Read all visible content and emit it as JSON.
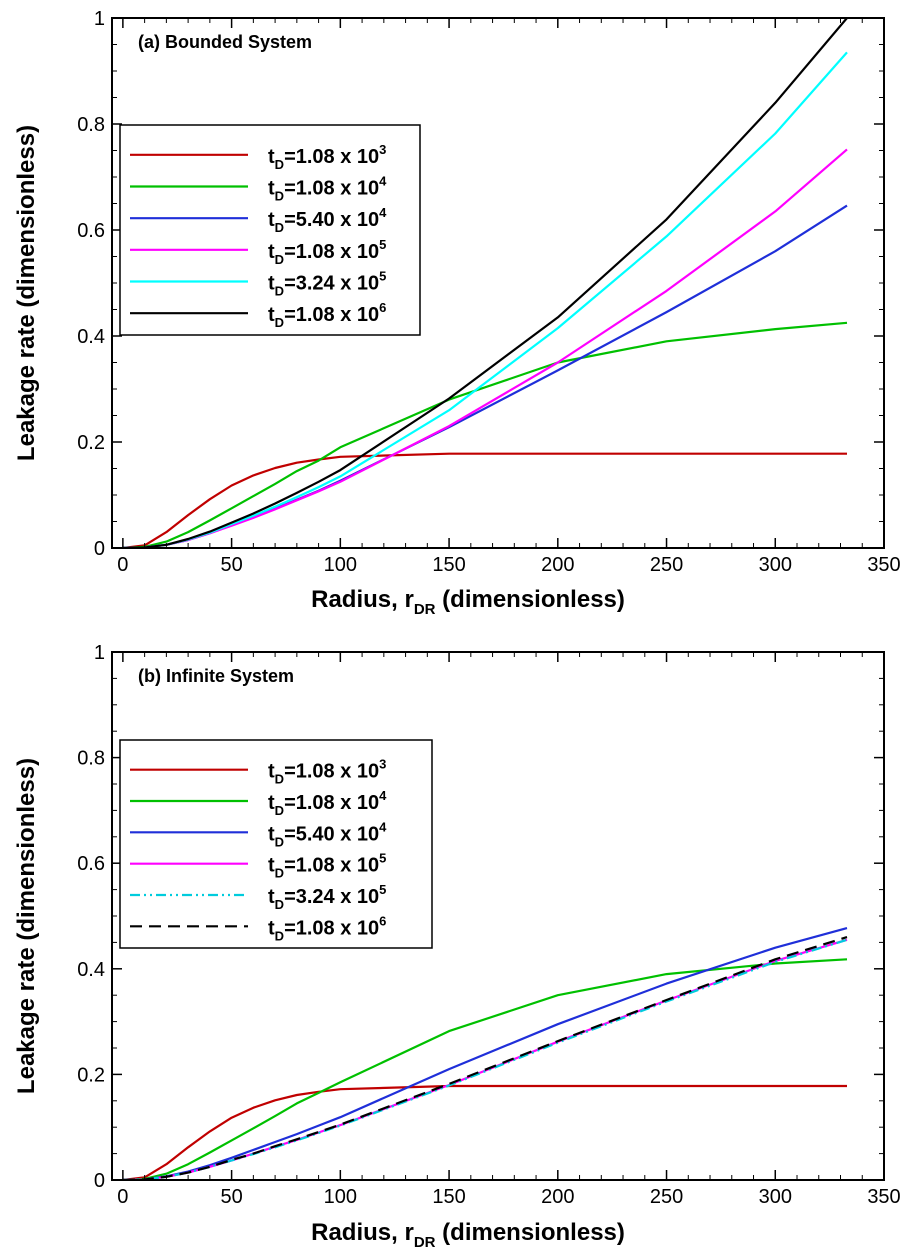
{
  "chart_data": [
    {
      "type": "line",
      "title": "(a) Bounded System",
      "xlabel_main": "Radius, r",
      "xlabel_sub": "DR",
      "xlabel_tail": " (dimensionless)",
      "ylabel": "Leakage rate (dimensionless)",
      "xlim": [
        -5,
        350
      ],
      "ylim": [
        0,
        1
      ],
      "xticks": [
        0,
        50,
        100,
        150,
        200,
        250,
        300,
        350
      ],
      "yticks": [
        0,
        0.2,
        0.4,
        0.6,
        0.8,
        1
      ],
      "yticklabels": [
        "0",
        "0.2",
        "0.4",
        "0.6",
        "0.8",
        "1"
      ],
      "legend_position": "upper-left",
      "x": [
        0,
        10,
        20,
        30,
        40,
        50,
        60,
        70,
        80,
        90,
        100,
        150,
        200,
        250,
        300,
        333
      ],
      "series": [
        {
          "name": {
            "pre": "t",
            "sub": "D",
            "mid": "=1.08 x 10",
            "sup": "3"
          },
          "color": "#c00000",
          "dash": "solid",
          "values": [
            0,
            0.005,
            0.03,
            0.062,
            0.092,
            0.118,
            0.137,
            0.151,
            0.161,
            0.167,
            0.172,
            0.178,
            0.178,
            0.178,
            0.178,
            0.178
          ]
        },
        {
          "name": {
            "pre": "t",
            "sub": "D",
            "mid": "=1.08 x 10",
            "sup": "4"
          },
          "color": "#00c000",
          "dash": "solid",
          "values": [
            0,
            0.002,
            0.012,
            0.03,
            0.052,
            0.075,
            0.098,
            0.121,
            0.145,
            0.165,
            0.19,
            0.28,
            0.35,
            0.39,
            0.413,
            0.425
          ]
        },
        {
          "name": {
            "pre": "t",
            "sub": "D",
            "mid": "=5.40 x 10",
            "sup": "4"
          },
          "color": "#1f2fd9",
          "dash": "solid",
          "values": [
            0,
            0.001,
            0.006,
            0.015,
            0.028,
            0.043,
            0.058,
            0.074,
            0.091,
            0.108,
            0.127,
            0.228,
            0.335,
            0.445,
            0.56,
            0.646
          ]
        },
        {
          "name": {
            "pre": "t",
            "sub": "D",
            "mid": "=1.08 x 10",
            "sup": "5"
          },
          "color": "#ff00ff",
          "dash": "solid",
          "values": [
            0,
            0.001,
            0.006,
            0.015,
            0.028,
            0.042,
            0.057,
            0.073,
            0.09,
            0.107,
            0.125,
            0.23,
            0.35,
            0.485,
            0.635,
            0.752
          ]
        },
        {
          "name": {
            "pre": "t",
            "sub": "D",
            "mid": "=3.24 x 10",
            "sup": "5"
          },
          "color": "#00ffff",
          "dash": "solid",
          "values": [
            0,
            0.001,
            0.006,
            0.016,
            0.029,
            0.045,
            0.061,
            0.078,
            0.096,
            0.115,
            0.135,
            0.26,
            0.415,
            0.588,
            0.782,
            0.935
          ]
        },
        {
          "name": {
            "pre": "t",
            "sub": "D",
            "mid": "=1.08 x 10",
            "sup": "6"
          },
          "color": "#000000",
          "dash": "solid",
          "values": [
            0,
            0.001,
            0.006,
            0.017,
            0.031,
            0.048,
            0.065,
            0.084,
            0.104,
            0.125,
            0.147,
            0.282,
            0.435,
            0.62,
            0.84,
            1.0
          ]
        }
      ]
    },
    {
      "type": "line",
      "title": "(b) Infinite System",
      "xlabel_main": "Radius, r",
      "xlabel_sub": "DR",
      "xlabel_tail": " (dimensionless)",
      "ylabel": "Leakage rate (dimensionless)",
      "xlim": [
        -5,
        350
      ],
      "ylim": [
        0,
        1
      ],
      "xticks": [
        0,
        50,
        100,
        150,
        200,
        250,
        300,
        350
      ],
      "yticks": [
        0,
        0.2,
        0.4,
        0.6,
        0.8,
        1
      ],
      "yticklabels": [
        "0",
        "0.2",
        "0.4",
        "0.6",
        "0.8",
        "1"
      ],
      "legend_position": "upper-left",
      "x": [
        0,
        10,
        20,
        30,
        40,
        50,
        60,
        70,
        80,
        90,
        100,
        150,
        200,
        250,
        300,
        333
      ],
      "series": [
        {
          "name": {
            "pre": "t",
            "sub": "D",
            "mid": "=1.08 x 10",
            "sup": "3"
          },
          "color": "#c00000",
          "dash": "solid",
          "values": [
            0,
            0.005,
            0.03,
            0.062,
            0.092,
            0.118,
            0.137,
            0.151,
            0.161,
            0.167,
            0.172,
            0.178,
            0.178,
            0.178,
            0.178,
            0.178
          ]
        },
        {
          "name": {
            "pre": "t",
            "sub": "D",
            "mid": "=1.08 x 10",
            "sup": "4"
          },
          "color": "#00c000",
          "dash": "solid",
          "values": [
            0,
            0.002,
            0.012,
            0.03,
            0.052,
            0.075,
            0.098,
            0.121,
            0.145,
            0.165,
            0.185,
            0.282,
            0.35,
            0.39,
            0.41,
            0.418
          ]
        },
        {
          "name": {
            "pre": "t",
            "sub": "D",
            "mid": "=5.40 x 10",
            "sup": "4"
          },
          "color": "#1f2fd9",
          "dash": "solid",
          "values": [
            0,
            0.001,
            0.007,
            0.016,
            0.028,
            0.042,
            0.057,
            0.072,
            0.087,
            0.103,
            0.119,
            0.21,
            0.295,
            0.372,
            0.44,
            0.477
          ]
        },
        {
          "name": {
            "pre": "t",
            "sub": "D",
            "mid": "=1.08 x 10",
            "sup": "5"
          },
          "color": "#ff00ff",
          "dash": "solid",
          "values": [
            0,
            0.001,
            0.006,
            0.014,
            0.025,
            0.037,
            0.05,
            0.063,
            0.076,
            0.09,
            0.104,
            0.18,
            0.262,
            0.34,
            0.415,
            0.455
          ]
        },
        {
          "name": {
            "pre": "t",
            "sub": "D",
            "mid": "=3.24 x 10",
            "sup": "5"
          },
          "color": "#00ccdd",
          "dash": "dashdotdot",
          "values": [
            0,
            0.001,
            0.006,
            0.014,
            0.025,
            0.037,
            0.049,
            0.062,
            0.075,
            0.089,
            0.103,
            0.179,
            0.26,
            0.338,
            0.413,
            0.455
          ]
        },
        {
          "name": {
            "pre": "t",
            "sub": "D",
            "mid": "=1.08 x 10",
            "sup": "6"
          },
          "color": "#000000",
          "dash": "dashed",
          "values": [
            0,
            0.001,
            0.006,
            0.014,
            0.025,
            0.038,
            0.05,
            0.064,
            0.077,
            0.091,
            0.105,
            0.182,
            0.263,
            0.341,
            0.418,
            0.46
          ]
        }
      ]
    }
  ]
}
